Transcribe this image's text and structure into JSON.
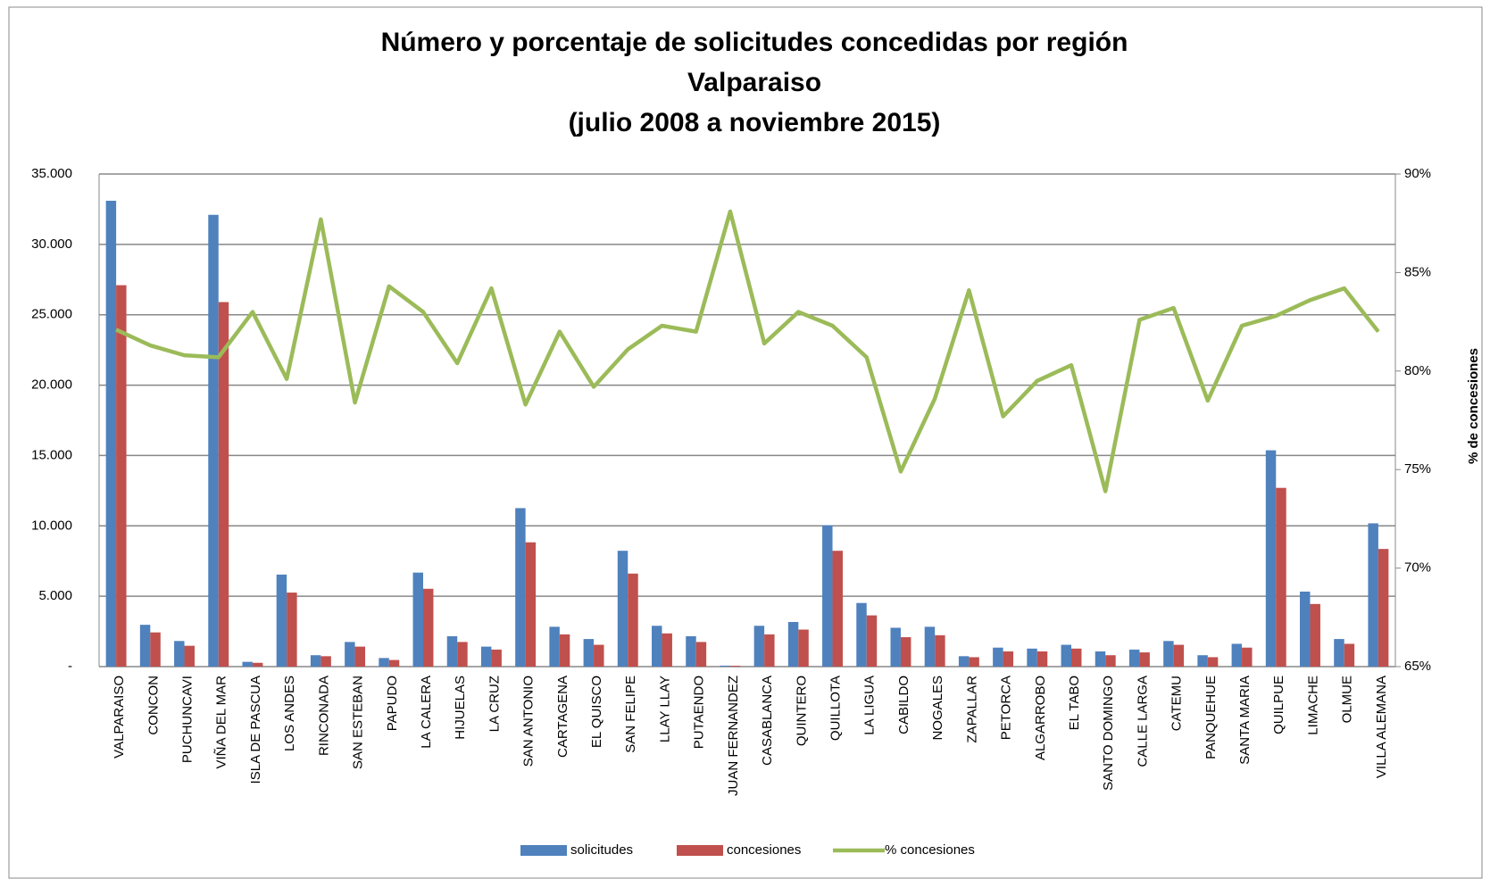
{
  "chart_data": {
    "type": "bar_line",
    "title": [
      "Número y porcentaje de solicitudes concedidas por región",
      "Valparaiso",
      "(julio 2008 a noviembre 2015)"
    ],
    "y2label": "% de concesiones",
    "categories": [
      "VALPARAISO",
      "CONCON",
      "PUCHUNCAVI",
      "VIÑA DEL MAR",
      "ISLA DE PASCUA",
      "LOS ANDES",
      "RINCONADA",
      "SAN ESTEBAN",
      "PAPUDO",
      "LA CALERA",
      "HIJUELAS",
      "LA CRUZ",
      "SAN ANTONIO",
      "CARTAGENA",
      "EL QUISCO",
      "SAN FELIPE",
      "LLAY LLAY",
      "PUTAENDO",
      "JUAN FERNANDEZ",
      "CASABLANCA",
      "QUINTERO",
      "QUILLOTA",
      "LA LIGUA",
      "CABILDO",
      "NOGALES",
      "ZAPALLAR",
      "PETORCA",
      "ALGARROBO",
      "EL TABO",
      "SANTO DOMINGO",
      "CALLE LARGA",
      "CATEMU",
      "PANQUEHUE",
      "SANTA MARIA",
      "QUILPUE",
      "LIMACHE",
      "OLMUE",
      "VILLA ALEMANA"
    ],
    "series": [
      {
        "name": "solicitudes",
        "color": "#4f81bd",
        "kind": "bar",
        "values": [
          33100,
          2970,
          1820,
          32100,
          340,
          6540,
          810,
          1750,
          610,
          6680,
          2160,
          1420,
          11260,
          2830,
          1960,
          8230,
          2900,
          2160,
          70,
          2900,
          3170,
          10050,
          4520,
          2760,
          2830,
          740,
          1350,
          1280,
          1550,
          1080,
          1210,
          1820,
          810,
          1620,
          15370,
          5330,
          1960,
          10180
        ]
      },
      {
        "name": "concesiones",
        "color": "#c0504d",
        "kind": "bar",
        "values": [
          27100,
          2430,
          1480,
          25900,
          270,
          5260,
          740,
          1420,
          470,
          5530,
          1750,
          1210,
          8830,
          2290,
          1550,
          6610,
          2360,
          1750,
          60,
          2290,
          2630,
          8230,
          3640,
          2090,
          2230,
          670,
          1080,
          1080,
          1280,
          810,
          1010,
          1550,
          670,
          1350,
          12700,
          4450,
          1620,
          8360
        ]
      },
      {
        "name": "% concesiones",
        "color": "#9bbb59",
        "kind": "line",
        "axis": "y2",
        "values": [
          82.1,
          81.3,
          80.8,
          80.7,
          83.0,
          79.6,
          87.7,
          78.4,
          84.3,
          83.0,
          80.4,
          84.2,
          78.3,
          82.0,
          79.2,
          81.1,
          82.3,
          82.0,
          88.1,
          81.4,
          83.0,
          82.3,
          80.7,
          74.9,
          78.6,
          84.1,
          77.7,
          79.5,
          80.3,
          73.9,
          82.6,
          83.2,
          78.5,
          82.3,
          82.8,
          83.6,
          84.2,
          82.0
        ]
      }
    ],
    "ylim": [
      0,
      35000
    ],
    "yticks": [
      {
        "value": 0,
        "label": "-"
      },
      {
        "value": 5000,
        "label": "5.000"
      },
      {
        "value": 10000,
        "label": "10.000"
      },
      {
        "value": 15000,
        "label": "15.000"
      },
      {
        "value": 20000,
        "label": "20.000"
      },
      {
        "value": 25000,
        "label": "25.000"
      },
      {
        "value": 30000,
        "label": "30.000"
      },
      {
        "value": 35000,
        "label": "35.000"
      }
    ],
    "y2lim": [
      65,
      90
    ],
    "y2ticks": [
      {
        "value": 65,
        "label": "65%"
      },
      {
        "value": 70,
        "label": "70%"
      },
      {
        "value": 75,
        "label": "75%"
      },
      {
        "value": 80,
        "label": "80%"
      },
      {
        "value": 85,
        "label": "85%"
      },
      {
        "value": 90,
        "label": "90%"
      }
    ],
    "grid": true,
    "legend": "bottom"
  }
}
